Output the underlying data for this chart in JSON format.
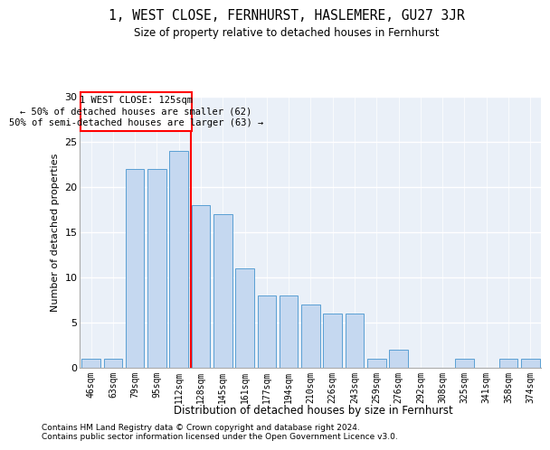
{
  "title": "1, WEST CLOSE, FERNHURST, HASLEMERE, GU27 3JR",
  "subtitle": "Size of property relative to detached houses in Fernhurst",
  "xlabel": "Distribution of detached houses by size in Fernhurst",
  "ylabel": "Number of detached properties",
  "categories": [
    "46sqm",
    "63sqm",
    "79sqm",
    "95sqm",
    "112sqm",
    "128sqm",
    "145sqm",
    "161sqm",
    "177sqm",
    "194sqm",
    "210sqm",
    "226sqm",
    "243sqm",
    "259sqm",
    "276sqm",
    "292sqm",
    "308sqm",
    "325sqm",
    "341sqm",
    "358sqm",
    "374sqm"
  ],
  "values": [
    1,
    1,
    22,
    22,
    24,
    18,
    17,
    11,
    8,
    8,
    7,
    6,
    6,
    1,
    2,
    0,
    0,
    1,
    0,
    1,
    1
  ],
  "bar_color": "#c5d8f0",
  "bar_edge_color": "#5a9fd4",
  "ref_line_x": 4.55,
  "ref_line_label": "1 WEST CLOSE: 125sqm",
  "annotation_line1": "← 50% of detached houses are smaller (62)",
  "annotation_line2": "50% of semi-detached houses are larger (63) →",
  "ylim": [
    0,
    30
  ],
  "yticks": [
    0,
    5,
    10,
    15,
    20,
    25,
    30
  ],
  "bg_color": "#eaf0f8",
  "footer1": "Contains HM Land Registry data © Crown copyright and database right 2024.",
  "footer2": "Contains public sector information licensed under the Open Government Licence v3.0."
}
